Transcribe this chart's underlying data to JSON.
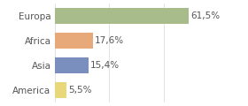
{
  "categories": [
    "Europa",
    "Africa",
    "Asia",
    "America"
  ],
  "values": [
    61.5,
    17.6,
    15.4,
    5.5
  ],
  "labels": [
    "61,5%",
    "17,6%",
    "15,4%",
    "5,5%"
  ],
  "bar_colors": [
    "#a8bb8a",
    "#e8a97a",
    "#7a8fbd",
    "#e8d87a"
  ],
  "background_color": "#ffffff",
  "xlim": [
    0,
    75
  ],
  "label_fontsize": 7.5,
  "tick_fontsize": 7.5,
  "grid_color": "#dddddd",
  "text_color": "#555555"
}
